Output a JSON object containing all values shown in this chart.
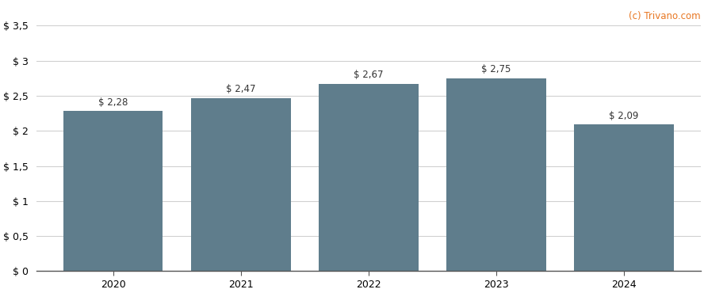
{
  "categories": [
    "2020",
    "2021",
    "2022",
    "2023",
    "2024"
  ],
  "values": [
    2.28,
    2.47,
    2.67,
    2.75,
    2.09
  ],
  "bar_color": "#5f7d8c",
  "bar_width": 0.78,
  "ylim": [
    0,
    3.5
  ],
  "yticks": [
    0,
    0.5,
    1.0,
    1.5,
    2.0,
    2.5,
    3.0,
    3.5
  ],
  "ytick_labels": [
    "$ 0",
    "$ 0,5",
    "$ 1",
    "$ 1,5",
    "$ 2",
    "$ 2,5",
    "$ 3",
    "$ 3,5"
  ],
  "bar_labels": [
    "$ 2,28",
    "$ 2,47",
    "$ 2,67",
    "$ 2,75",
    "$ 2,09"
  ],
  "watermark": "(c) Trivano.com",
  "watermark_color": "#e87722",
  "background_color": "#ffffff",
  "grid_color": "#d0d0d0",
  "label_fontsize": 8.5,
  "tick_fontsize": 9,
  "watermark_fontsize": 8.5,
  "label_color": "#333333"
}
